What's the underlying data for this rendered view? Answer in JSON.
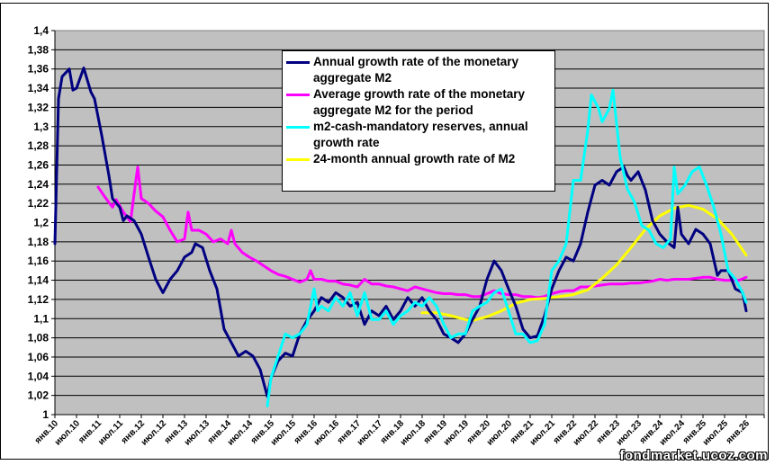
{
  "chart_data": {
    "type": "line",
    "title": "",
    "xlabel": "",
    "ylabel": "",
    "ylim": [
      1.0,
      1.4
    ],
    "y_ticks": [
      "1",
      "1,02",
      "1,04",
      "1,06",
      "1,08",
      "1,1",
      "1,12",
      "1,14",
      "1,16",
      "1,18",
      "1,2",
      "1,22",
      "1,24",
      "1,26",
      "1,28",
      "1,3",
      "1,32",
      "1,34",
      "1,36",
      "1,38",
      "1,4"
    ],
    "y_tick_values": [
      1.0,
      1.02,
      1.04,
      1.06,
      1.08,
      1.1,
      1.12,
      1.14,
      1.16,
      1.18,
      1.2,
      1.22,
      1.24,
      1.26,
      1.28,
      1.3,
      1.32,
      1.34,
      1.36,
      1.38,
      1.4
    ],
    "x_unit": "months since янв.10",
    "xlim": [
      0,
      197
    ],
    "x_ticks": [
      "янв.10",
      "июл.10",
      "янв.11",
      "июл.11",
      "янв.12",
      "июл.12",
      "янв.13",
      "июл.13",
      "янв.14",
      "июл.14",
      "янв.15",
      "июл.15",
      "янв.16",
      "июл.16",
      "янв.17",
      "июл.17",
      "янв.18",
      "июл.18",
      "янв.19",
      "июл.19",
      "янв.20",
      "июл.20",
      "янв.21",
      "июл.21",
      "янв.22",
      "июл.22",
      "янв.23",
      "июл.23",
      "янв.24",
      "июл.24",
      "янв.25",
      "июл.25",
      "янв.26"
    ],
    "grid": true,
    "legend_position": "top-center",
    "series": [
      {
        "name": "Annual growth rate of the monetary aggregate M2",
        "color": "#000080",
        "x": [
          0,
          1,
          2,
          4,
          5,
          6,
          8,
          10,
          11,
          13,
          15,
          16,
          18,
          19,
          20,
          22,
          24,
          26,
          28,
          30,
          32,
          34,
          36,
          38,
          39,
          41,
          43,
          45,
          47,
          49,
          51,
          53,
          55,
          57,
          59,
          60,
          62,
          64,
          66,
          68,
          70,
          72,
          74,
          76,
          78,
          80,
          82,
          84,
          86,
          88,
          90,
          92,
          94,
          96,
          98,
          100,
          102,
          104,
          106,
          108,
          110,
          112,
          114,
          116,
          118,
          120,
          122,
          124,
          126,
          128,
          130,
          132,
          134,
          136,
          138,
          140,
          142,
          144,
          146,
          148,
          150,
          152,
          154,
          156,
          158,
          159,
          160,
          162,
          164,
          166,
          168,
          170,
          172,
          173,
          174,
          176,
          178,
          180,
          182,
          184,
          185,
          187,
          189,
          191,
          192
        ],
        "y": [
          1.178,
          1.329,
          1.352,
          1.36,
          1.338,
          1.34,
          1.361,
          1.336,
          1.329,
          1.291,
          1.249,
          1.225,
          1.216,
          1.202,
          1.207,
          1.202,
          1.188,
          1.164,
          1.141,
          1.127,
          1.141,
          1.15,
          1.164,
          1.169,
          1.178,
          1.174,
          1.15,
          1.131,
          1.089,
          1.075,
          1.061,
          1.066,
          1.061,
          1.047,
          1.019,
          1.038,
          1.056,
          1.064,
          1.061,
          1.084,
          1.098,
          1.108,
          1.122,
          1.117,
          1.127,
          1.122,
          1.113,
          1.117,
          1.094,
          1.108,
          1.103,
          1.113,
          1.099,
          1.108,
          1.122,
          1.113,
          1.122,
          1.108,
          1.099,
          1.084,
          1.08,
          1.075,
          1.084,
          1.099,
          1.113,
          1.141,
          1.16,
          1.15,
          1.131,
          1.113,
          1.089,
          1.08,
          1.082,
          1.103,
          1.131,
          1.15,
          1.164,
          1.16,
          1.178,
          1.211,
          1.239,
          1.244,
          1.239,
          1.253,
          1.258,
          1.249,
          1.244,
          1.253,
          1.234,
          1.202,
          1.188,
          1.18,
          1.174,
          1.216,
          1.188,
          1.178,
          1.193,
          1.188,
          1.178,
          1.145,
          1.15,
          1.15,
          1.131,
          1.127,
          1.108
        ]
      },
      {
        "name": "Average growth rate of the monetary aggregate M2 for the period",
        "color": "#ff00ff",
        "x": [
          12,
          14,
          16,
          17,
          19,
          21,
          22,
          23,
          24,
          26,
          28,
          30,
          32,
          34,
          36,
          37,
          38,
          40,
          42,
          44,
          46,
          48,
          49,
          50,
          52,
          54,
          56,
          58,
          60,
          62,
          64,
          66,
          68,
          70,
          71,
          72,
          74,
          76,
          78,
          80,
          82,
          84,
          86,
          88,
          90,
          92,
          94,
          96,
          98,
          100,
          102,
          104,
          106,
          108,
          110,
          112,
          114,
          116,
          118,
          120,
          122,
          124,
          126,
          128,
          130,
          132,
          134,
          136,
          138,
          140,
          142,
          144,
          146,
          148,
          150,
          152,
          154,
          156,
          158,
          160,
          162,
          164,
          166,
          168,
          170,
          172,
          174,
          176,
          178,
          180,
          182,
          184,
          186,
          188,
          190,
          192
        ],
        "y": [
          1.237,
          1.226,
          1.216,
          1.224,
          1.211,
          1.201,
          1.23,
          1.258,
          1.225,
          1.22,
          1.212,
          1.206,
          1.192,
          1.18,
          1.183,
          1.211,
          1.192,
          1.192,
          1.188,
          1.18,
          1.183,
          1.178,
          1.192,
          1.178,
          1.169,
          1.164,
          1.16,
          1.155,
          1.15,
          1.146,
          1.144,
          1.141,
          1.138,
          1.141,
          1.15,
          1.141,
          1.141,
          1.139,
          1.139,
          1.136,
          1.135,
          1.133,
          1.141,
          1.136,
          1.136,
          1.134,
          1.133,
          1.131,
          1.129,
          1.133,
          1.131,
          1.129,
          1.127,
          1.126,
          1.126,
          1.125,
          1.125,
          1.123,
          1.123,
          1.126,
          1.129,
          1.126,
          1.125,
          1.125,
          1.123,
          1.123,
          1.122,
          1.123,
          1.126,
          1.128,
          1.129,
          1.129,
          1.133,
          1.133,
          1.134,
          1.135,
          1.136,
          1.136,
          1.136,
          1.137,
          1.137,
          1.138,
          1.139,
          1.141,
          1.14,
          1.141,
          1.141,
          1.141,
          1.142,
          1.143,
          1.143,
          1.141,
          1.14,
          1.14,
          1.14,
          1.143
        ]
      },
      {
        "name": "m2-cash-mandatory reserves, annual growth rate",
        "color": "#00ffff",
        "x": [
          59,
          60,
          62,
          64,
          66,
          68,
          70,
          72,
          73,
          74,
          76,
          78,
          80,
          82,
          84,
          86,
          88,
          90,
          92,
          94,
          96,
          98,
          100,
          102,
          104,
          106,
          108,
          110,
          112,
          114,
          116,
          118,
          120,
          122,
          124,
          126,
          128,
          130,
          132,
          134,
          136,
          138,
          140,
          142,
          144,
          146,
          148,
          149,
          151,
          152,
          154,
          155,
          157,
          159,
          161,
          163,
          165,
          167,
          169,
          171,
          172,
          173,
          175,
          177,
          179,
          181,
          183,
          185,
          187,
          189,
          191,
          192
        ],
        "y": [
          1.009,
          1.038,
          1.061,
          1.084,
          1.08,
          1.084,
          1.094,
          1.131,
          1.108,
          1.113,
          1.108,
          1.122,
          1.113,
          1.127,
          1.103,
          1.127,
          1.099,
          1.099,
          1.108,
          1.094,
          1.103,
          1.108,
          1.117,
          1.113,
          1.122,
          1.113,
          1.094,
          1.08,
          1.084,
          1.084,
          1.108,
          1.113,
          1.117,
          1.127,
          1.131,
          1.108,
          1.084,
          1.084,
          1.075,
          1.077,
          1.094,
          1.15,
          1.16,
          1.178,
          1.244,
          1.244,
          1.296,
          1.333,
          1.319,
          1.305,
          1.319,
          1.338,
          1.268,
          1.235,
          1.221,
          1.197,
          1.192,
          1.178,
          1.174,
          1.183,
          1.258,
          1.23,
          1.239,
          1.253,
          1.258,
          1.239,
          1.216,
          1.188,
          1.15,
          1.141,
          1.127,
          1.117
        ]
      },
      {
        "name": "24-month annual growth rate of M2",
        "color": "#ffff00",
        "x": [
          102,
          106,
          110,
          114,
          116,
          120,
          124,
          128,
          132,
          136,
          140,
          144,
          148,
          152,
          156,
          160,
          164,
          168,
          172,
          176,
          180,
          184,
          188,
          192
        ],
        "y": [
          1.106,
          1.106,
          1.103,
          1.099,
          1.098,
          1.102,
          1.108,
          1.116,
          1.12,
          1.121,
          1.123,
          1.125,
          1.13,
          1.142,
          1.156,
          1.174,
          1.193,
          1.207,
          1.215,
          1.218,
          1.214,
          1.204,
          1.188,
          1.166
        ]
      }
    ]
  },
  "watermark": "fondmarket.ucoz.com"
}
